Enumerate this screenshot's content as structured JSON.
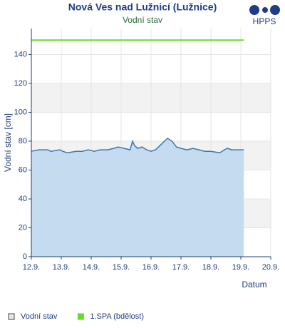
{
  "chart_data": {
    "type": "area",
    "title": "Nová Ves nad Lužnicí (Lužnice)",
    "subtitle": "Vodní stav",
    "logo": "HPPS",
    "x_label": "Datum",
    "y_label": "Vodní stav [cm]",
    "xlim": [
      12,
      20
    ],
    "xticks": [
      {
        "value": 12,
        "label": "12.9."
      },
      {
        "value": 13,
        "label": "13.9."
      },
      {
        "value": 14,
        "label": "14.9."
      },
      {
        "value": 15,
        "label": "15.9."
      },
      {
        "value": 16,
        "label": "16.9."
      },
      {
        "value": 17,
        "label": "17.9."
      },
      {
        "value": 18,
        "label": "18.9."
      },
      {
        "value": 19,
        "label": "19.9."
      },
      {
        "value": 20,
        "label": "20.9."
      }
    ],
    "ylim": [
      0,
      158
    ],
    "yticks": [
      0,
      20,
      40,
      60,
      80,
      100,
      120,
      140
    ],
    "series": [
      {
        "name": "Vodní stav",
        "color": "#3a78b0",
        "fill": "#c5dcf0",
        "x": [
          12.0,
          12.25,
          12.55,
          12.65,
          12.95,
          13.05,
          13.2,
          13.5,
          13.7,
          13.9,
          14.1,
          14.3,
          14.55,
          14.75,
          14.9,
          15.1,
          15.3,
          15.38,
          15.45,
          15.55,
          15.7,
          15.85,
          16.0,
          16.15,
          16.3,
          16.45,
          16.55,
          16.7,
          16.85,
          17.0,
          17.2,
          17.4,
          17.6,
          17.8,
          18.0,
          18.3,
          18.45,
          18.55,
          18.7,
          19.1
        ],
        "values": [
          73,
          74,
          74,
          73,
          74,
          73,
          72,
          73,
          73,
          74,
          73,
          74,
          74,
          75,
          76,
          75,
          74,
          80,
          77,
          75,
          76,
          74,
          73,
          74,
          77,
          80,
          82,
          80,
          76,
          75,
          74,
          75,
          74,
          73,
          73,
          72,
          74,
          75,
          74,
          74
        ]
      },
      {
        "name": "1.SPA (bdělost)",
        "color": "#66dd22",
        "x": [
          12.0,
          19.1
        ],
        "values": [
          150,
          150
        ]
      }
    ]
  }
}
